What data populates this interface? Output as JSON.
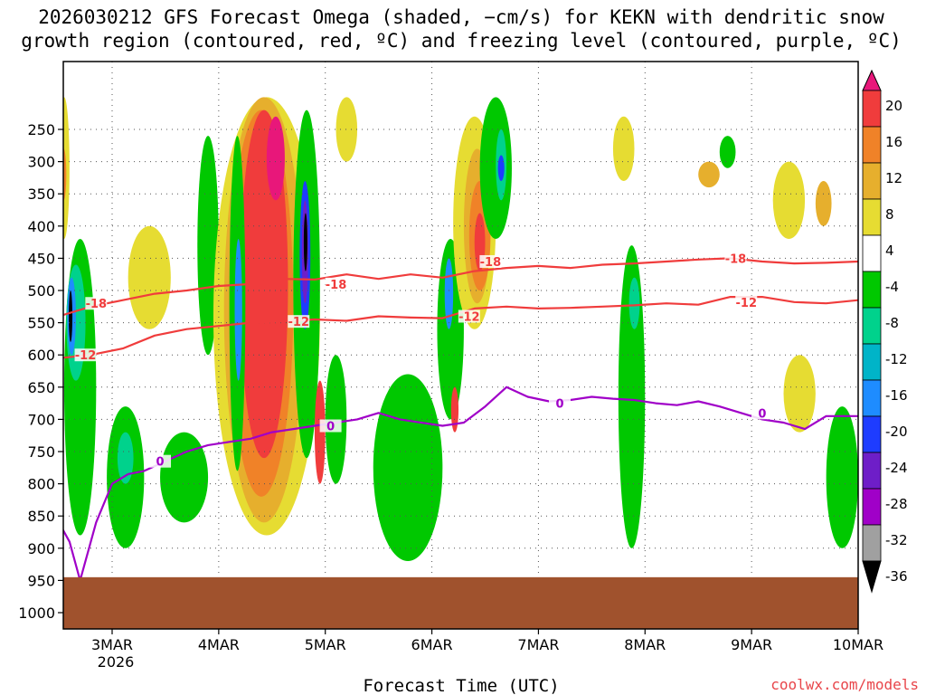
{
  "chart_data": {
    "type": "heatmap",
    "title": [
      "2026030212 GFS Forecast Omega (shaded, −cm/s) for KEKN with dendritic snow",
      "growth region (contoured, red, ºC) and freezing level (contoured, purple, ºC)"
    ],
    "xlabel": "Forecast Time (UTC)",
    "ylabel": "",
    "x_ticks": [
      "3MAR",
      "4MAR",
      "5MAR",
      "6MAR",
      "7MAR",
      "8MAR",
      "9MAR",
      "10MAR"
    ],
    "x_year_label": "2026",
    "xlim": [
      2.5,
      10.0
    ],
    "y_ticks": [
      250,
      300,
      350,
      400,
      450,
      500,
      550,
      600,
      650,
      700,
      750,
      800,
      850,
      900,
      950,
      1000
    ],
    "ylim": [
      1000,
      200
    ],
    "colorbar": {
      "ticks": [
        20,
        16,
        12,
        8,
        4,
        -4,
        -8,
        -12,
        -16,
        -20,
        -24,
        -28,
        -32,
        -36
      ],
      "bins": [
        {
          "from": 20,
          "to": 24,
          "color": "#e8177a"
        },
        {
          "from": 16,
          "to": 20,
          "color": "#f03c3c"
        },
        {
          "from": 12,
          "to": 16,
          "color": "#f08228"
        },
        {
          "from": 8,
          "to": 12,
          "color": "#e6af2d"
        },
        {
          "from": 4,
          "to": 8,
          "color": "#e6dc32"
        },
        {
          "from": -4,
          "to": 4,
          "color": "#ffffff"
        },
        {
          "from": -8,
          "to": -4,
          "color": "#00c800"
        },
        {
          "from": -12,
          "to": -8,
          "color": "#00d28c"
        },
        {
          "from": -16,
          "to": -12,
          "color": "#00b4c8"
        },
        {
          "from": -20,
          "to": -16,
          "color": "#1e8cff"
        },
        {
          "from": -24,
          "to": -20,
          "color": "#1e3cff"
        },
        {
          "from": -28,
          "to": -24,
          "color": "#6e1ec8"
        },
        {
          "from": -32,
          "to": -28,
          "color": "#a000c8"
        },
        {
          "from": -36,
          "to": -32,
          "color": "#a0a0a0"
        },
        {
          "from": -40,
          "to": -36,
          "color": "#000000"
        }
      ]
    },
    "shaded_regions": [
      {
        "color": "#00c800",
        "x0": 2.55,
        "x1": 2.85,
        "p0": 420,
        "p1": 880
      },
      {
        "color": "#00d28c",
        "x0": 2.57,
        "x1": 2.75,
        "p0": 460,
        "p1": 640
      },
      {
        "color": "#1e8cff",
        "x0": 2.58,
        "x1": 2.66,
        "p0": 480,
        "p1": 600
      },
      {
        "color": "#000000",
        "x0": 2.6,
        "x1": 2.62,
        "p0": 500,
        "p1": 580
      },
      {
        "color": "#e6dc32",
        "x0": 2.5,
        "x1": 2.6,
        "p0": 200,
        "p1": 420
      },
      {
        "color": "#f08228",
        "x0": 2.52,
        "x1": 2.57,
        "p0": 280,
        "p1": 360
      },
      {
        "color": "#00c800",
        "x0": 2.95,
        "x1": 3.3,
        "p0": 680,
        "p1": 900
      },
      {
        "color": "#00d28c",
        "x0": 3.05,
        "x1": 3.2,
        "p0": 720,
        "p1": 800
      },
      {
        "color": "#e6dc32",
        "x0": 3.15,
        "x1": 3.55,
        "p0": 400,
        "p1": 560
      },
      {
        "color": "#00c800",
        "x0": 3.45,
        "x1": 3.9,
        "p0": 720,
        "p1": 860
      },
      {
        "color": "#00c800",
        "x0": 3.8,
        "x1": 4.0,
        "p0": 260,
        "p1": 600
      },
      {
        "color": "#e6dc32",
        "x0": 3.95,
        "x1": 4.95,
        "p0": 200,
        "p1": 880
      },
      {
        "color": "#e6af2d",
        "x0": 4.05,
        "x1": 4.8,
        "p0": 200,
        "p1": 860
      },
      {
        "color": "#f08228",
        "x0": 4.1,
        "x1": 4.7,
        "p0": 220,
        "p1": 820
      },
      {
        "color": "#f03c3c",
        "x0": 4.2,
        "x1": 4.65,
        "p0": 220,
        "p1": 760
      },
      {
        "color": "#e8177a",
        "x0": 4.45,
        "x1": 4.62,
        "p0": 230,
        "p1": 360
      },
      {
        "color": "#00c800",
        "x0": 4.1,
        "x1": 4.25,
        "p0": 260,
        "p1": 780
      },
      {
        "color": "#1e8cff",
        "x0": 4.15,
        "x1": 4.22,
        "p0": 420,
        "p1": 640
      },
      {
        "color": "#00c800",
        "x0": 4.7,
        "x1": 4.95,
        "p0": 220,
        "p1": 760
      },
      {
        "color": "#1e3cff",
        "x0": 4.76,
        "x1": 4.86,
        "p0": 330,
        "p1": 560
      },
      {
        "color": "#6e1ec8",
        "x0": 4.78,
        "x1": 4.84,
        "p0": 360,
        "p1": 520
      },
      {
        "color": "#000000",
        "x0": 4.8,
        "x1": 4.83,
        "p0": 380,
        "p1": 470
      },
      {
        "color": "#f03c3c",
        "x0": 4.9,
        "x1": 5.0,
        "p0": 640,
        "p1": 800
      },
      {
        "color": "#00c800",
        "x0": 5.0,
        "x1": 5.2,
        "p0": 600,
        "p1": 800
      },
      {
        "color": "#e6dc32",
        "x0": 5.1,
        "x1": 5.3,
        "p0": 200,
        "p1": 300
      },
      {
        "color": "#00c800",
        "x0": 5.45,
        "x1": 6.1,
        "p0": 630,
        "p1": 920
      },
      {
        "color": "#00c800",
        "x0": 6.05,
        "x1": 6.3,
        "p0": 420,
        "p1": 700
      },
      {
        "color": "#1e8cff",
        "x0": 6.12,
        "x1": 6.2,
        "p0": 450,
        "p1": 560
      },
      {
        "color": "#f03c3c",
        "x0": 6.18,
        "x1": 6.25,
        "p0": 650,
        "p1": 720
      },
      {
        "color": "#e6dc32",
        "x0": 6.2,
        "x1": 6.6,
        "p0": 230,
        "p1": 560
      },
      {
        "color": "#e6af2d",
        "x0": 6.3,
        "x1": 6.55,
        "p0": 280,
        "p1": 520
      },
      {
        "color": "#f08228",
        "x0": 6.35,
        "x1": 6.55,
        "p0": 330,
        "p1": 500
      },
      {
        "color": "#f03c3c",
        "x0": 6.4,
        "x1": 6.5,
        "p0": 380,
        "p1": 470
      },
      {
        "color": "#00c800",
        "x0": 6.45,
        "x1": 6.75,
        "p0": 200,
        "p1": 420
      },
      {
        "color": "#00d28c",
        "x0": 6.6,
        "x1": 6.7,
        "p0": 250,
        "p1": 360
      },
      {
        "color": "#1e3cff",
        "x0": 6.62,
        "x1": 6.68,
        "p0": 290,
        "p1": 330
      },
      {
        "color": "#00c800",
        "x0": 7.75,
        "x1": 8.0,
        "p0": 430,
        "p1": 900
      },
      {
        "color": "#00d28c",
        "x0": 7.85,
        "x1": 7.95,
        "p0": 480,
        "p1": 560
      },
      {
        "color": "#e6dc32",
        "x0": 7.7,
        "x1": 7.9,
        "p0": 230,
        "p1": 330
      },
      {
        "color": "#e6af2d",
        "x0": 8.5,
        "x1": 8.7,
        "p0": 300,
        "p1": 340
      },
      {
        "color": "#00c800",
        "x0": 8.7,
        "x1": 8.85,
        "p0": 260,
        "p1": 310
      },
      {
        "color": "#e6dc32",
        "x0": 9.2,
        "x1": 9.5,
        "p0": 300,
        "p1": 420
      },
      {
        "color": "#e6dc32",
        "x0": 9.3,
        "x1": 9.6,
        "p0": 600,
        "p1": 720
      },
      {
        "color": "#00c800",
        "x0": 9.7,
        "x1": 10.0,
        "p0": 680,
        "p1": 900
      },
      {
        "color": "#e6af2d",
        "x0": 9.6,
        "x1": 9.75,
        "p0": 330,
        "p1": 400
      }
    ],
    "contours": [
      {
        "name": "dendritic-top",
        "label": "-18",
        "color": "#f03c3c",
        "label_points": [
          [
            2.85,
            520
          ],
          [
            5.1,
            490
          ],
          [
            6.55,
            455
          ],
          [
            8.85,
            450
          ]
        ],
        "x": [
          2.5,
          2.8,
          3.1,
          3.4,
          3.7,
          4.0,
          4.3,
          4.6,
          4.9,
          5.2,
          5.5,
          5.8,
          6.1,
          6.4,
          6.7,
          7.0,
          7.3,
          7.6,
          7.9,
          8.2,
          8.5,
          8.8,
          9.1,
          9.4,
          9.7,
          10.0
        ],
        "y": [
          540,
          525,
          515,
          505,
          500,
          493,
          490,
          482,
          483,
          475,
          482,
          475,
          480,
          470,
          465,
          462,
          465,
          460,
          458,
          455,
          452,
          450,
          455,
          458,
          457,
          455
        ]
      },
      {
        "name": "dendritic-bottom",
        "label": "-12",
        "color": "#f03c3c",
        "label_points": [
          [
            2.75,
            600
          ],
          [
            4.75,
            548
          ],
          [
            6.35,
            540
          ],
          [
            8.95,
            518
          ]
        ],
        "x": [
          2.5,
          2.8,
          3.1,
          3.4,
          3.7,
          4.0,
          4.3,
          4.6,
          4.9,
          5.2,
          5.5,
          5.8,
          6.1,
          6.4,
          6.7,
          7.0,
          7.3,
          7.6,
          7.9,
          8.2,
          8.5,
          8.8,
          9.1,
          9.4,
          9.7,
          10.0
        ],
        "y": [
          605,
          600,
          590,
          570,
          560,
          555,
          550,
          548,
          545,
          547,
          540,
          542,
          543,
          528,
          525,
          528,
          527,
          525,
          523,
          520,
          522,
          510,
          510,
          518,
          520,
          515
        ]
      },
      {
        "name": "freezing-level",
        "label": "0",
        "color": "#a000c8",
        "label_points": [
          [
            3.45,
            765
          ],
          [
            5.05,
            710
          ],
          [
            7.2,
            675
          ],
          [
            9.1,
            690
          ]
        ],
        "x": [
          2.5,
          2.6,
          2.7,
          2.85,
          3.0,
          3.15,
          3.3,
          3.5,
          3.7,
          3.9,
          4.1,
          4.3,
          4.5,
          4.7,
          4.9,
          5.1,
          5.3,
          5.5,
          5.7,
          5.9,
          6.1,
          6.3,
          6.5,
          6.7,
          6.9,
          7.1,
          7.3,
          7.5,
          7.7,
          7.9,
          8.1,
          8.3,
          8.5,
          8.7,
          8.9,
          9.1,
          9.3,
          9.5,
          9.7,
          10.0
        ],
        "y": [
          860,
          890,
          950,
          860,
          800,
          785,
          780,
          765,
          750,
          740,
          735,
          730,
          720,
          715,
          710,
          705,
          700,
          690,
          700,
          705,
          710,
          705,
          680,
          650,
          665,
          672,
          670,
          665,
          668,
          670,
          675,
          678,
          672,
          680,
          690,
          700,
          705,
          715,
          695,
          695
        ]
      }
    ],
    "terrain": {
      "color": "#a0522d",
      "p_top": 945
    },
    "credit": "coolwx.com/models"
  }
}
